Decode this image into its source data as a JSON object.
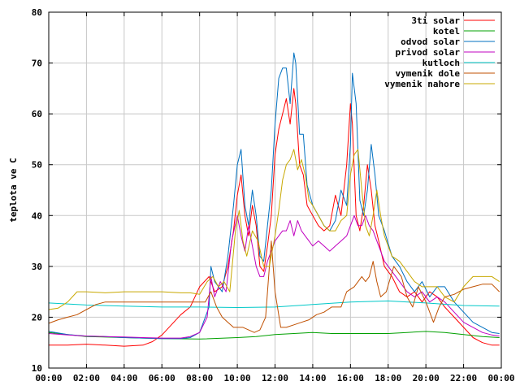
{
  "chart_data": {
    "type": "line",
    "xlabel": "",
    "ylabel": "teplota ve C",
    "xlim": [
      0,
      24
    ],
    "ylim": [
      10,
      80
    ],
    "x_ticks": [
      {
        "v": 0,
        "label": "00:00"
      },
      {
        "v": 2,
        "label": "02:00"
      },
      {
        "v": 4,
        "label": "04:00"
      },
      {
        "v": 6,
        "label": "06:00"
      },
      {
        "v": 8,
        "label": "08:00"
      },
      {
        "v": 10,
        "label": "10:00"
      },
      {
        "v": 12,
        "label": "12:00"
      },
      {
        "v": 14,
        "label": "14:00"
      },
      {
        "v": 16,
        "label": "16:00"
      },
      {
        "v": 18,
        "label": "18:00"
      },
      {
        "v": 20,
        "label": "20:00"
      },
      {
        "v": 22,
        "label": "22:00"
      },
      {
        "v": 24,
        "label": "00:00"
      }
    ],
    "y_ticks": [
      {
        "v": 10,
        "label": "10"
      },
      {
        "v": 20,
        "label": "20"
      },
      {
        "v": 30,
        "label": "30"
      },
      {
        "v": 40,
        "label": "40"
      },
      {
        "v": 50,
        "label": "50"
      },
      {
        "v": 60,
        "label": "60"
      },
      {
        "v": 70,
        "label": "70"
      },
      {
        "v": 80,
        "label": "80"
      }
    ],
    "grid": true,
    "legend_position": "top-right",
    "series": [
      {
        "name": "3ti solar",
        "color": "#ff0000",
        "x": [
          0,
          1,
          2,
          3,
          4,
          5,
          5.5,
          6,
          6.5,
          7,
          7.5,
          8,
          8.5,
          8.8,
          9.2,
          9.5,
          9.8,
          10,
          10.2,
          10.4,
          10.6,
          10.8,
          11,
          11.2,
          11.4,
          11.6,
          11.8,
          12,
          12.2,
          12.4,
          12.6,
          12.8,
          13,
          13.1,
          13.3,
          13.5,
          13.7,
          14,
          14.3,
          14.6,
          14.9,
          15.2,
          15.5,
          15.8,
          16,
          16.1,
          16.3,
          16.5,
          16.7,
          16.9,
          17.1,
          17.3,
          17.5,
          17.8,
          18.2,
          18.6,
          19,
          19.4,
          19.8,
          20.2,
          20.6,
          21,
          21.5,
          22,
          22.5,
          23,
          23.5,
          23.9
        ],
        "y": [
          14.5,
          14.5,
          14.7,
          14.5,
          14.3,
          14.5,
          15.2,
          16.5,
          18.5,
          20.5,
          22,
          26,
          28,
          25,
          26,
          30,
          37,
          44,
          48,
          40,
          36,
          42,
          38,
          30,
          29,
          34,
          40,
          52,
          57,
          60,
          63,
          58,
          65,
          62,
          50,
          48,
          42,
          40,
          38,
          37,
          38,
          44,
          40,
          50,
          62,
          58,
          40,
          37,
          42,
          50,
          45,
          38,
          35,
          30,
          28,
          25,
          24,
          25,
          23,
          25,
          24,
          22,
          20,
          18,
          16,
          15,
          14.5,
          14.5
        ]
      },
      {
        "name": "kotel",
        "color": "#00a000",
        "x": [
          0,
          2,
          4,
          6,
          8,
          10,
          11,
          12,
          13,
          14,
          15,
          16,
          17,
          18,
          19,
          20,
          21,
          22,
          23,
          23.9
        ],
        "y": [
          17,
          16.2,
          16,
          15.8,
          15.7,
          16,
          16.2,
          16.6,
          16.8,
          17,
          16.8,
          16.8,
          16.8,
          16.8,
          17,
          17.2,
          17,
          16.6,
          16.2,
          16
        ]
      },
      {
        "name": "odvod solar",
        "color": "#0070c0",
        "x": [
          0,
          1,
          2,
          3,
          4,
          5,
          6,
          7,
          7.5,
          8,
          8.5,
          8.6,
          8.8,
          9.2,
          9.5,
          9.8,
          10,
          10.2,
          10.4,
          10.6,
          10.8,
          11,
          11.2,
          11.4,
          11.6,
          11.8,
          12,
          12.2,
          12.4,
          12.6,
          12.8,
          13,
          13.1,
          13.3,
          13.5,
          13.7,
          14,
          14.3,
          14.6,
          14.9,
          15.2,
          15.5,
          15.8,
          16,
          16.1,
          16.3,
          16.5,
          16.7,
          16.9,
          17.1,
          17.3,
          17.5,
          17.8,
          18.2,
          18.6,
          19,
          19.4,
          19.8,
          20.2,
          20.6,
          21,
          21.5,
          22,
          22.5,
          23,
          23.5,
          23.9
        ],
        "y": [
          17.2,
          16.6,
          16.3,
          16.2,
          16,
          15.9,
          15.8,
          15.8,
          16,
          17,
          22,
          30,
          27,
          25,
          32,
          42,
          50,
          53,
          42,
          38,
          45,
          40,
          32,
          31,
          38,
          45,
          58,
          67,
          69,
          69,
          62,
          72,
          70,
          56,
          56,
          46,
          42,
          40,
          38,
          37,
          39,
          45,
          42,
          54,
          68,
          62,
          43,
          40,
          45,
          54,
          48,
          40,
          37,
          32,
          30,
          27,
          25,
          27,
          24,
          26,
          26,
          23,
          21,
          19,
          18,
          17,
          16.8
        ]
      },
      {
        "name": "privod solar",
        "color": "#c000c0",
        "x": [
          0,
          1,
          2,
          3,
          4,
          5,
          6,
          7,
          7.5,
          8,
          8.4,
          8.6,
          8.8,
          9.1,
          9.4,
          9.7,
          10,
          10.2,
          10.4,
          10.6,
          10.8,
          11,
          11.2,
          11.4,
          11.6,
          11.8,
          12,
          12.2,
          12.4,
          12.6,
          12.8,
          13,
          13.2,
          13.4,
          13.6,
          13.8,
          14,
          14.3,
          14.6,
          14.9,
          15.2,
          15.5,
          15.8,
          16,
          16.2,
          16.4,
          16.6,
          16.8,
          17,
          17.2,
          17.4,
          17.6,
          17.8,
          18.2,
          18.6,
          19,
          19.4,
          19.8,
          20.2,
          20.6,
          21,
          21.5,
          22,
          22.5,
          23,
          23.5,
          23.9
        ],
        "y": [
          16.8,
          16.5,
          16.3,
          16.2,
          16.1,
          16,
          15.9,
          15.9,
          16.2,
          17,
          20,
          28,
          24,
          27,
          25,
          35,
          40,
          36,
          33,
          38,
          34,
          30,
          28,
          28,
          31,
          33,
          35,
          36,
          37,
          37,
          39,
          36,
          39,
          37,
          36,
          35,
          34,
          35,
          34,
          33,
          34,
          35,
          36,
          38,
          40,
          38,
          38,
          40,
          38,
          37,
          35,
          33,
          31,
          29,
          27,
          25,
          24,
          25,
          23,
          24,
          23,
          21,
          19,
          18,
          17,
          16.5,
          16.3
        ]
      },
      {
        "name": "kutloch",
        "color": "#00c8c8",
        "x": [
          0,
          2,
          4,
          6,
          8,
          10,
          12,
          14,
          16,
          18,
          20,
          22,
          23.9
        ],
        "y": [
          22.8,
          22.4,
          22.2,
          22,
          22,
          21.9,
          22,
          22.5,
          23,
          23.2,
          22.8,
          22.3,
          22.2
        ]
      },
      {
        "name": "vymenik dole",
        "color": "#c05000",
        "x": [
          0,
          0.5,
          1,
          1.5,
          2,
          2.5,
          3,
          4,
          5,
          6,
          6.5,
          7,
          7.5,
          8,
          8.3,
          8.6,
          8.9,
          9.2,
          9.5,
          9.8,
          10,
          10.3,
          10.6,
          10.9,
          11.2,
          11.5,
          11.8,
          12,
          12.3,
          12.6,
          13,
          13.4,
          13.8,
          14.2,
          14.6,
          15,
          15.5,
          15.8,
          16.2,
          16.6,
          16.8,
          17,
          17.2,
          17.4,
          17.6,
          17.9,
          18.3,
          18.7,
          19,
          19.3,
          19.6,
          20,
          20.4,
          20.7,
          21,
          21.5,
          22,
          22.5,
          23,
          23.5,
          23.9
        ],
        "y": [
          18.8,
          19.5,
          20,
          20.5,
          21.5,
          22.5,
          23,
          23,
          23,
          23,
          23,
          23,
          23,
          23,
          23,
          25,
          22,
          20,
          19,
          18,
          18,
          18,
          17.5,
          17,
          17.5,
          20,
          35,
          25,
          18,
          18,
          18.5,
          19,
          19.5,
          20.5,
          21,
          22,
          22,
          25,
          26,
          28,
          27,
          28,
          31,
          27,
          24,
          25,
          30,
          28,
          24,
          22,
          26,
          23,
          19,
          22,
          24,
          24.5,
          25.5,
          26,
          26.5,
          26.5,
          25
        ]
      },
      {
        "name": "vymenik nahore",
        "color": "#c8a800",
        "x": [
          0,
          0.5,
          1,
          1.5,
          2,
          3,
          4,
          5,
          6,
          7,
          7.5,
          8,
          8.4,
          8.7,
          9,
          9.3,
          9.6,
          9.9,
          10.1,
          10.3,
          10.5,
          10.8,
          11.1,
          11.4,
          11.7,
          12,
          12.2,
          12.4,
          12.6,
          12.8,
          13,
          13.2,
          13.4,
          13.6,
          13.8,
          14,
          14.3,
          14.6,
          14.9,
          15.2,
          15.5,
          15.8,
          16,
          16.2,
          16.4,
          16.6,
          16.8,
          17,
          17.2,
          17.4,
          17.6,
          17.8,
          18.2,
          18.6,
          19,
          19.4,
          19.8,
          20.2,
          20.6,
          21,
          21.5,
          22,
          22.5,
          23,
          23.5,
          23.9
        ],
        "y": [
          21.5,
          21.8,
          23,
          25,
          25,
          24.8,
          25,
          25,
          25,
          24.8,
          24.8,
          24.5,
          27,
          28,
          26,
          27,
          25,
          37,
          41,
          35,
          32,
          37,
          35,
          30,
          30,
          36,
          41,
          47,
          50,
          51,
          53,
          49,
          51,
          48,
          43,
          42,
          40,
          38,
          37,
          37,
          39,
          40,
          48,
          52,
          53,
          45,
          38,
          36,
          40,
          45,
          40,
          36,
          32,
          31,
          29,
          27,
          26,
          26,
          26,
          24,
          23,
          26,
          28,
          28,
          28,
          27
        ]
      }
    ]
  }
}
